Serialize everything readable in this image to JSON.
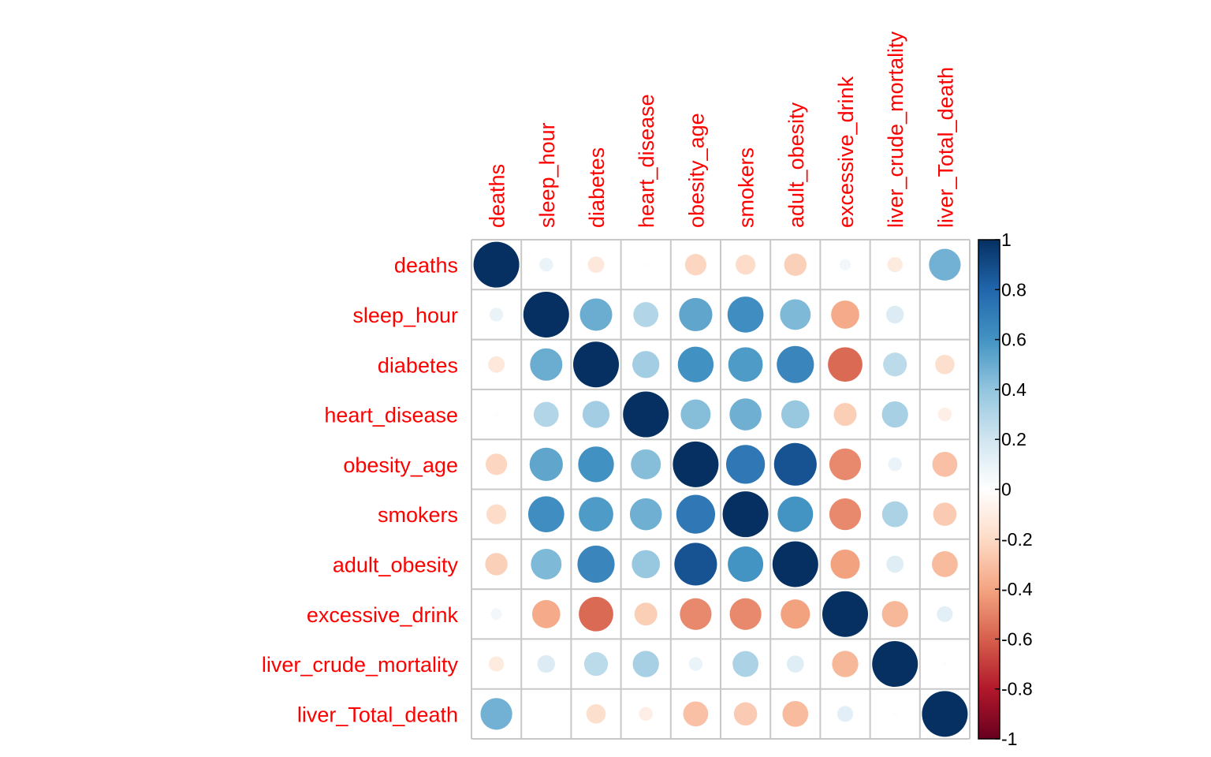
{
  "chart_data": {
    "type": "heatmap",
    "title": "",
    "variables": [
      "deaths",
      "sleep_hour",
      "diabetes",
      "heart_disease",
      "obesity_age",
      "smokers",
      "adult_obesity",
      "excessive_drink",
      "liver_crude_mortality",
      "liver_Total_death"
    ],
    "matrix": [
      [
        1.0,
        0.09,
        -0.13,
        -0.01,
        -0.22,
        -0.19,
        -0.24,
        0.06,
        -0.11,
        0.48
      ],
      [
        0.09,
        1.0,
        0.5,
        0.3,
        0.53,
        0.62,
        0.45,
        -0.38,
        0.15,
        0.01
      ],
      [
        -0.13,
        0.5,
        1.0,
        0.35,
        0.61,
        0.57,
        0.66,
        -0.57,
        0.27,
        -0.18
      ],
      [
        -0.01,
        0.3,
        0.35,
        1.0,
        0.43,
        0.49,
        0.38,
        -0.25,
        0.33,
        -0.09
      ],
      [
        -0.22,
        0.53,
        0.61,
        0.43,
        1.0,
        0.72,
        0.87,
        -0.48,
        0.09,
        -0.3
      ],
      [
        -0.19,
        0.62,
        0.57,
        0.49,
        0.72,
        1.0,
        0.6,
        -0.48,
        0.32,
        -0.26
      ],
      [
        -0.24,
        0.45,
        0.66,
        0.38,
        0.87,
        0.6,
        1.0,
        -0.41,
        0.14,
        -0.32
      ],
      [
        0.06,
        -0.38,
        -0.57,
        -0.25,
        -0.48,
        -0.48,
        -0.41,
        1.0,
        -0.33,
        0.12
      ],
      [
        -0.11,
        0.15,
        0.27,
        0.33,
        0.09,
        0.32,
        0.14,
        -0.33,
        1.0,
        -0.01
      ],
      [
        0.48,
        0.01,
        -0.18,
        -0.09,
        -0.3,
        -0.26,
        -0.32,
        0.12,
        -0.01,
        1.0
      ]
    ],
    "colorbar": {
      "ticks": [
        "1",
        "0.8",
        "0.6",
        "0.4",
        "0.2",
        "0",
        "-0.2",
        "-0.4",
        "-0.6",
        "-0.8",
        "-1"
      ],
      "range": [
        -1,
        1
      ],
      "colors": [
        "#67001f",
        "#b2182b",
        "#d6604d",
        "#f4a582",
        "#fddbc7",
        "#ffffff",
        "#d1e5f0",
        "#92c5de",
        "#4393c3",
        "#2166ac",
        "#053061"
      ]
    },
    "grid": true,
    "legend": "right"
  }
}
